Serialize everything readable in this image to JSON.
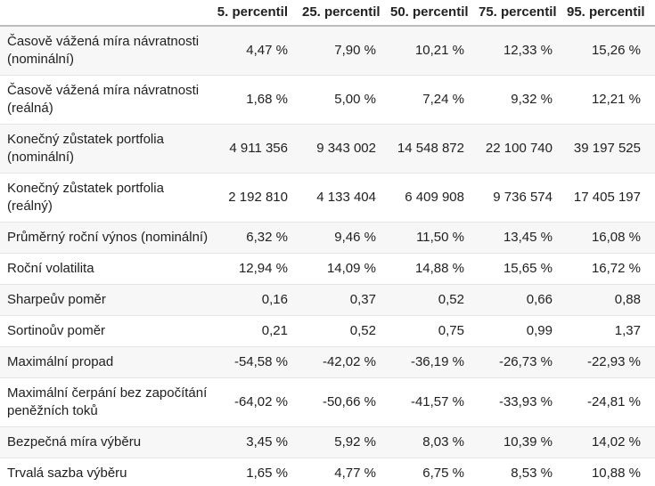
{
  "chart_data": {
    "type": "table",
    "columns": [
      "5. percentil",
      "25. percentil",
      "50. percentil",
      "75. percentil",
      "95. percentil"
    ],
    "rows": [
      {
        "label": "Časově vážená míra návratnosti (nominální)",
        "values": [
          "4,47 %",
          "7,90 %",
          "10,21 %",
          "12,33 %",
          "15,26 %"
        ]
      },
      {
        "label": "Časově vážená míra návratnosti (reálná)",
        "values": [
          "1,68 %",
          "5,00 %",
          "7,24 %",
          "9,32 %",
          "12,21 %"
        ]
      },
      {
        "label": "Konečný zůstatek portfolia (nominální)",
        "values": [
          "4 911 356",
          "9 343 002",
          "14 548 872",
          "22 100 740",
          "39 197 525"
        ]
      },
      {
        "label": "Konečný zůstatek portfolia (reálný)",
        "values": [
          "2 192 810",
          "4 133 404",
          "6 409 908",
          "9 736 574",
          "17 405 197"
        ]
      },
      {
        "label": "Průměrný roční výnos (nominální)",
        "values": [
          "6,32 %",
          "9,46 %",
          "11,50 %",
          "13,45 %",
          "16,08 %"
        ]
      },
      {
        "label": "Roční volatilita",
        "values": [
          "12,94 %",
          "14,09 %",
          "14,88 %",
          "15,65 %",
          "16,72 %"
        ]
      },
      {
        "label": "Sharpeův poměr",
        "values": [
          "0,16",
          "0,37",
          "0,52",
          "0,66",
          "0,88"
        ]
      },
      {
        "label": "Sortinoův poměr",
        "values": [
          "0,21",
          "0,52",
          "0,75",
          "0,99",
          "1,37"
        ]
      },
      {
        "label": "Maximální propad",
        "values": [
          "-54,58 %",
          "-42,02 %",
          "-36,19 %",
          "-26,73 %",
          "-22,93 %"
        ]
      },
      {
        "label": "Maximální čerpání bez započítání peněžních toků",
        "values": [
          "-64,02 %",
          "-50,66 %",
          "-41,57 %",
          "-33,93 %",
          "-24,81 %"
        ]
      },
      {
        "label": "Bezpečná míra výběru",
        "values": [
          "3,45 %",
          "5,92 %",
          "8,03 %",
          "10,39 %",
          "14,02 %"
        ]
      },
      {
        "label": "Trvalá sazba výběru",
        "values": [
          "1,65 %",
          "4,77 %",
          "6,75 %",
          "8,53 %",
          "10,88 %"
        ]
      }
    ]
  },
  "colors": {
    "text": "#212121",
    "stripe": "#f7f7f7",
    "divider": "#e4e4e4",
    "header_border": "#bdbdbd",
    "background": "#ffffff"
  }
}
